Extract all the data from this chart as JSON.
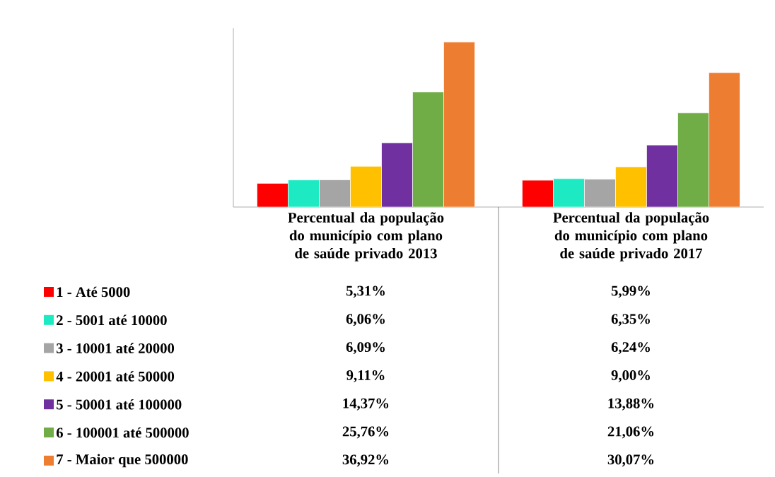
{
  "chart_data": {
    "type": "bar",
    "categories": [
      "Percentual da população do município com plano de saúde privado 2013",
      "Percentual da população do município com plano de saúde privado 2017"
    ],
    "ylim": [
      0,
      40
    ],
    "legend": "bottom left",
    "series": [
      {
        "name": "1 - Até 5000",
        "color": "#ff0000",
        "values": [
          5.31,
          5.99
        ],
        "value_labels": [
          "5,31%",
          "5,99%"
        ]
      },
      {
        "name": "2 - 5001 até 10000",
        "color": "#1de9c3",
        "values": [
          6.06,
          6.35
        ],
        "value_labels": [
          "6,06%",
          "6,35%"
        ]
      },
      {
        "name": "3 - 10001 até 20000",
        "color": "#a5a5a5",
        "values": [
          6.09,
          6.24
        ],
        "value_labels": [
          "6,09%",
          "6,24%"
        ]
      },
      {
        "name": "4 - 20001 até 50000",
        "color": "#ffc000",
        "values": [
          9.11,
          9.0
        ],
        "value_labels": [
          "9,11%",
          "9,00%"
        ]
      },
      {
        "name": "5 - 50001 até 100000",
        "color": "#7030a0",
        "values": [
          14.37,
          13.88
        ],
        "value_labels": [
          "14,37%",
          "13,88%"
        ]
      },
      {
        "name": "6 - 100001 até 500000",
        "color": "#70ad47",
        "values": [
          25.76,
          21.06
        ],
        "value_labels": [
          "25,76%",
          "21,06%"
        ]
      },
      {
        "name": "7 - Maior que 500000",
        "color": "#ed7d31",
        "values": [
          36.92,
          30.07
        ],
        "value_labels": [
          "36,92%",
          "30,07%"
        ]
      }
    ]
  }
}
